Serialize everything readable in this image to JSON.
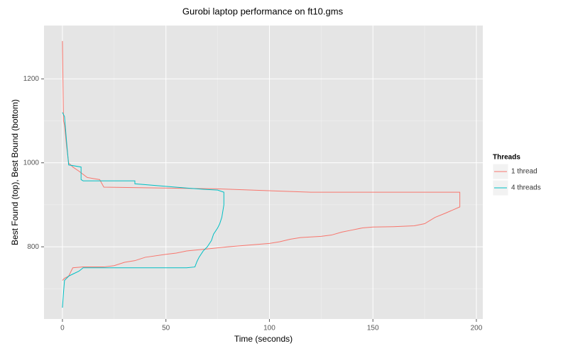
{
  "chart_data": {
    "type": "line",
    "title": "Gurobi laptop performance on ft10.gms",
    "x_label": "Time (seconds)",
    "y_label": "Best Found (top), Best Bound (bottom)",
    "legend_title": "Threads",
    "legend_position": "right",
    "grid": true,
    "xlim": [
      -8.9,
      203.1
    ],
    "ylim": [
      628,
      1327
    ],
    "xticks": [
      0,
      50,
      100,
      150,
      200
    ],
    "yticks": [
      800,
      1000,
      1200
    ],
    "xminor": [
      25,
      75,
      125,
      175
    ],
    "yminor": [
      700,
      900,
      1100
    ],
    "series": [
      {
        "name": "1 thread",
        "color": "#f8766d",
        "x": [
          0,
          0.5,
          1,
          2,
          3,
          5,
          8,
          12,
          18,
          20,
          75,
          120,
          192,
          192,
          185,
          180,
          175,
          170,
          160,
          150,
          145,
          140,
          135,
          130,
          125,
          115,
          110,
          105,
          100,
          90,
          80,
          70,
          60,
          55,
          50,
          40,
          35,
          30,
          25,
          20,
          10,
          5,
          4,
          3,
          1,
          0
        ],
        "values": [
          1290,
          1100,
          1090,
          1040,
          1000,
          990,
          980,
          965,
          960,
          942,
          938,
          930,
          930,
          895,
          880,
          870,
          855,
          850,
          848,
          847,
          845,
          840,
          835,
          828,
          825,
          822,
          818,
          812,
          808,
          804,
          800,
          795,
          790,
          785,
          782,
          775,
          767,
          763,
          755,
          752,
          752,
          750,
          740,
          730,
          725,
          720
        ]
      },
      {
        "name": "4 threads",
        "color": "#00bfc4",
        "x": [
          0,
          1,
          2,
          3,
          9,
          9,
          10,
          35,
          35,
          60,
          68,
          75,
          78,
          78,
          77,
          76,
          75,
          73,
          72,
          70,
          68,
          66,
          65,
          64,
          60,
          10,
          8,
          5,
          3,
          2,
          1,
          0.5,
          0
        ],
        "values": [
          1120,
          1110,
          1050,
          995,
          990,
          960,
          957,
          957,
          950,
          940,
          937,
          935,
          930,
          900,
          870,
          855,
          845,
          830,
          815,
          800,
          790,
          775,
          765,
          752,
          750,
          750,
          742,
          735,
          730,
          725,
          720,
          690,
          655
        ]
      }
    ]
  }
}
